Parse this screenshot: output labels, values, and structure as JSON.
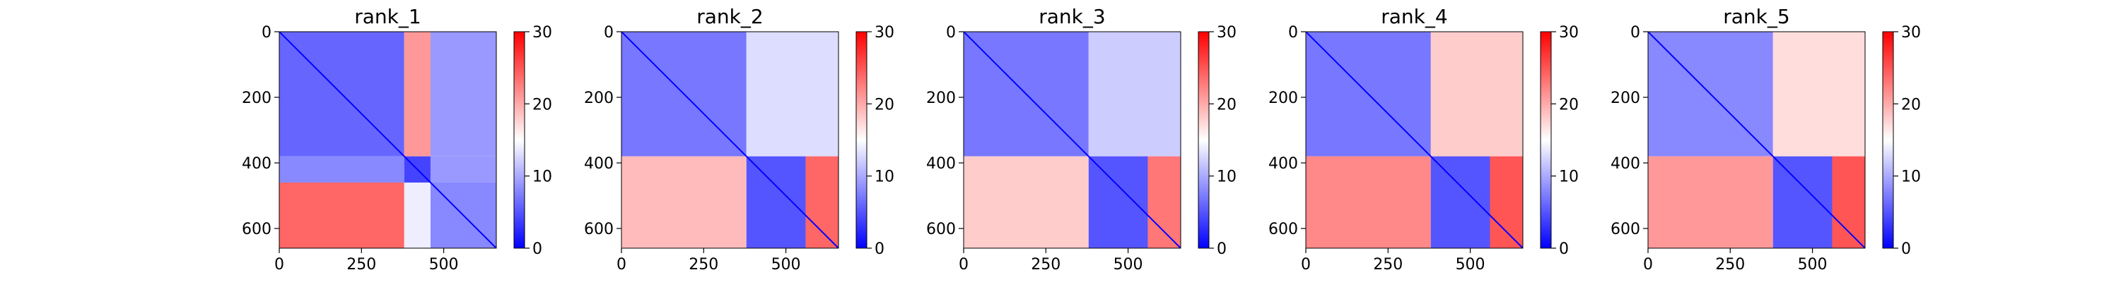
{
  "chart_data": [
    {
      "type": "heatmap",
      "title": "rank_1",
      "n": 660,
      "xticks": [
        0,
        250,
        500
      ],
      "yticks": [
        0,
        200,
        400,
        600
      ],
      "colorbar": {
        "ticks": [
          0,
          10,
          20,
          30
        ],
        "vmin": 0,
        "vmax": 30,
        "colors": [
          "#0000ff",
          "#ffffff",
          "#ff0000"
        ]
      },
      "grid": false,
      "blocks": [
        {
          "r": [
            0,
            380
          ],
          "c": [
            0,
            380
          ],
          "value": 6
        },
        {
          "r": [
            0,
            380
          ],
          "c": [
            380,
            460
          ],
          "value": 21
        },
        {
          "r": [
            0,
            380
          ],
          "c": [
            460,
            660
          ],
          "value": 9
        },
        {
          "r": [
            380,
            460
          ],
          "c": [
            0,
            380
          ],
          "value": 8
        },
        {
          "r": [
            380,
            460
          ],
          "c": [
            380,
            460
          ],
          "value": 4
        },
        {
          "r": [
            380,
            460
          ],
          "c": [
            460,
            660
          ],
          "value": 9
        },
        {
          "r": [
            460,
            660
          ],
          "c": [
            0,
            380
          ],
          "value": 24
        },
        {
          "r": [
            460,
            660
          ],
          "c": [
            380,
            460
          ],
          "value": 14
        },
        {
          "r": [
            460,
            660
          ],
          "c": [
            460,
            660
          ],
          "value": 8
        }
      ]
    },
    {
      "type": "heatmap",
      "title": "rank_2",
      "n": 660,
      "xticks": [
        0,
        250,
        500
      ],
      "yticks": [
        0,
        200,
        400,
        600
      ],
      "colorbar": {
        "ticks": [
          0,
          10,
          20,
          30
        ],
        "vmin": 0,
        "vmax": 30,
        "colors": [
          "#0000ff",
          "#ffffff",
          "#ff0000"
        ]
      },
      "grid": false,
      "blocks": [
        {
          "r": [
            0,
            380
          ],
          "c": [
            0,
            380
          ],
          "value": 7
        },
        {
          "r": [
            0,
            380
          ],
          "c": [
            380,
            660
          ],
          "value": 13
        },
        {
          "r": [
            380,
            660
          ],
          "c": [
            0,
            380
          ],
          "value": 19
        },
        {
          "r": [
            380,
            660
          ],
          "c": [
            380,
            560
          ],
          "value": 5
        },
        {
          "r": [
            380,
            660
          ],
          "c": [
            560,
            660
          ],
          "value": 24
        }
      ]
    },
    {
      "type": "heatmap",
      "title": "rank_3",
      "n": 660,
      "xticks": [
        0,
        250,
        500
      ],
      "yticks": [
        0,
        200,
        400,
        600
      ],
      "colorbar": {
        "ticks": [
          0,
          10,
          20,
          30
        ],
        "vmin": 0,
        "vmax": 30,
        "colors": [
          "#0000ff",
          "#ffffff",
          "#ff0000"
        ]
      },
      "grid": false,
      "blocks": [
        {
          "r": [
            0,
            380
          ],
          "c": [
            0,
            380
          ],
          "value": 7
        },
        {
          "r": [
            0,
            380
          ],
          "c": [
            380,
            660
          ],
          "value": 12
        },
        {
          "r": [
            380,
            660
          ],
          "c": [
            0,
            380
          ],
          "value": 18
        },
        {
          "r": [
            380,
            660
          ],
          "c": [
            380,
            560
          ],
          "value": 5
        },
        {
          "r": [
            380,
            660
          ],
          "c": [
            560,
            660
          ],
          "value": 23
        }
      ]
    },
    {
      "type": "heatmap",
      "title": "rank_4",
      "n": 660,
      "xticks": [
        0,
        250,
        500
      ],
      "yticks": [
        0,
        200,
        400,
        600
      ],
      "colorbar": {
        "ticks": [
          0,
          10,
          20,
          30
        ],
        "vmin": 0,
        "vmax": 30,
        "colors": [
          "#0000ff",
          "#ffffff",
          "#ff0000"
        ]
      },
      "grid": false,
      "blocks": [
        {
          "r": [
            0,
            380
          ],
          "c": [
            0,
            380
          ],
          "value": 7
        },
        {
          "r": [
            0,
            380
          ],
          "c": [
            380,
            660
          ],
          "value": 18
        },
        {
          "r": [
            380,
            660
          ],
          "c": [
            0,
            380
          ],
          "value": 22
        },
        {
          "r": [
            380,
            660
          ],
          "c": [
            380,
            560
          ],
          "value": 5
        },
        {
          "r": [
            380,
            660
          ],
          "c": [
            560,
            660
          ],
          "value": 25
        }
      ]
    },
    {
      "type": "heatmap",
      "title": "rank_5",
      "n": 660,
      "xticks": [
        0,
        250,
        500
      ],
      "yticks": [
        0,
        200,
        400,
        600
      ],
      "colorbar": {
        "ticks": [
          0,
          10,
          20,
          30
        ],
        "vmin": 0,
        "vmax": 30,
        "colors": [
          "#0000ff",
          "#ffffff",
          "#ff0000"
        ]
      },
      "grid": false,
      "blocks": [
        {
          "r": [
            0,
            380
          ],
          "c": [
            0,
            380
          ],
          "value": 8
        },
        {
          "r": [
            0,
            380
          ],
          "c": [
            380,
            660
          ],
          "value": 17
        },
        {
          "r": [
            380,
            660
          ],
          "c": [
            0,
            380
          ],
          "value": 21
        },
        {
          "r": [
            380,
            660
          ],
          "c": [
            380,
            560
          ],
          "value": 5
        },
        {
          "r": [
            380,
            660
          ],
          "c": [
            560,
            660
          ],
          "value": 25
        }
      ]
    }
  ]
}
